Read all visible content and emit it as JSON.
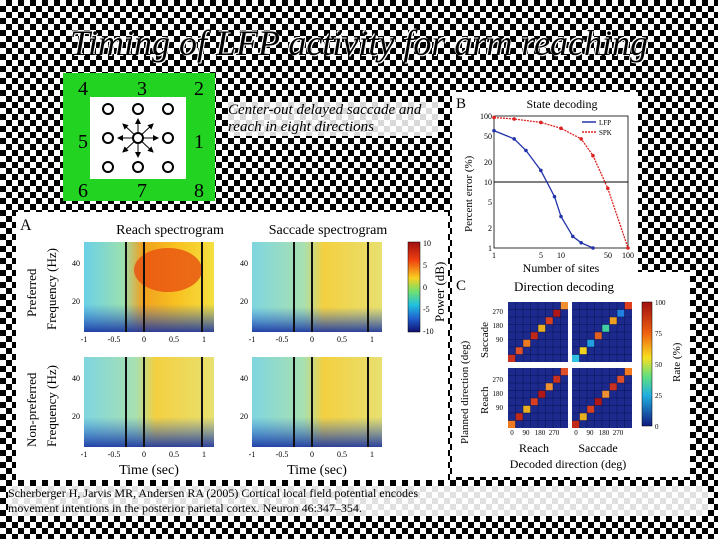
{
  "slide": {
    "title": "Timing of LFP activity for arm reaching",
    "task_caption": "Center-out delayed saccade and reach in eight directions",
    "citation_line1": "Scherberger H, Jarvis MR, Andersen RA (2005) Cortical local field potential encodes",
    "citation_line2": "movement intentions in the posterior parietal cortex. Neuron 46:347–354."
  },
  "target_diagram": {
    "numbers": [
      "4",
      "3",
      "2",
      "5",
      "1",
      "6",
      "7",
      "8"
    ],
    "colors": {
      "outer": "#22d322",
      "inner": "#ffffff"
    }
  },
  "panel_a": {
    "letter": "A",
    "col_titles": [
      "Reach spectrogram",
      "Saccade spectrogram"
    ],
    "row_labels": [
      "Preferred",
      "Non-preferred"
    ],
    "ylabel": "Frequency (Hz)",
    "xlabel": "Time (sec)",
    "yticks": [
      "40",
      "20"
    ],
    "xticks": [
      "-1",
      "-0.5",
      "0",
      "0.5",
      "1"
    ],
    "colorbar_label": "Power (dB)",
    "colorbar_ticks": [
      "10",
      "5",
      "0",
      "-5",
      "-10"
    ]
  },
  "panel_b": {
    "letter": "B",
    "title": "State decoding",
    "ylabel": "Percent error (%)",
    "xlabel": "Number of sites",
    "legend": [
      "LFP",
      "SPK"
    ],
    "yticks": [
      "100",
      "50",
      "20",
      "10",
      "5",
      "2",
      "1"
    ],
    "xticks": [
      "1",
      "2",
      "5",
      "10",
      "20",
      "50",
      "100"
    ],
    "colors": {
      "lfp": "#2233aa",
      "spk": "#dd2222"
    }
  },
  "panel_c": {
    "letter": "C",
    "title": "Direction decoding",
    "ylabel_outer": "Planned direction (deg)",
    "row_labels": [
      "Saccade",
      "Reach"
    ],
    "col_labels": [
      "Reach",
      "Saccade"
    ],
    "xlabel": "Decoded direction (deg)",
    "ticks": [
      "0",
      "90",
      "180",
      "270"
    ],
    "colorbar_label": "Rate (%)",
    "colorbar_ticks": [
      "100",
      "75",
      "50",
      "25",
      "0"
    ]
  },
  "chart_data": [
    {
      "type": "line",
      "title": "State decoding",
      "xlabel": "Number of sites",
      "ylabel": "Percent error (%)",
      "x_scale": "log",
      "y_scale": "log",
      "xlim": [
        1,
        100
      ],
      "ylim": [
        1,
        100
      ],
      "series": [
        {
          "name": "LFP",
          "x": [
            1,
            2,
            3,
            5,
            8,
            10,
            15,
            20,
            30
          ],
          "y": [
            60,
            45,
            30,
            15,
            6,
            3,
            1.5,
            1.2,
            1
          ]
        },
        {
          "name": "SPK",
          "x": [
            1,
            2,
            5,
            10,
            20,
            30,
            50,
            100
          ],
          "y": [
            95,
            90,
            80,
            65,
            45,
            25,
            8,
            1
          ]
        }
      ]
    },
    {
      "type": "heatmap",
      "title": "Direction decoding",
      "xlabel": "Decoded direction (deg)",
      "ylabel": "Planned direction (deg)",
      "colorbar_range": [
        0,
        100
      ]
    }
  ]
}
